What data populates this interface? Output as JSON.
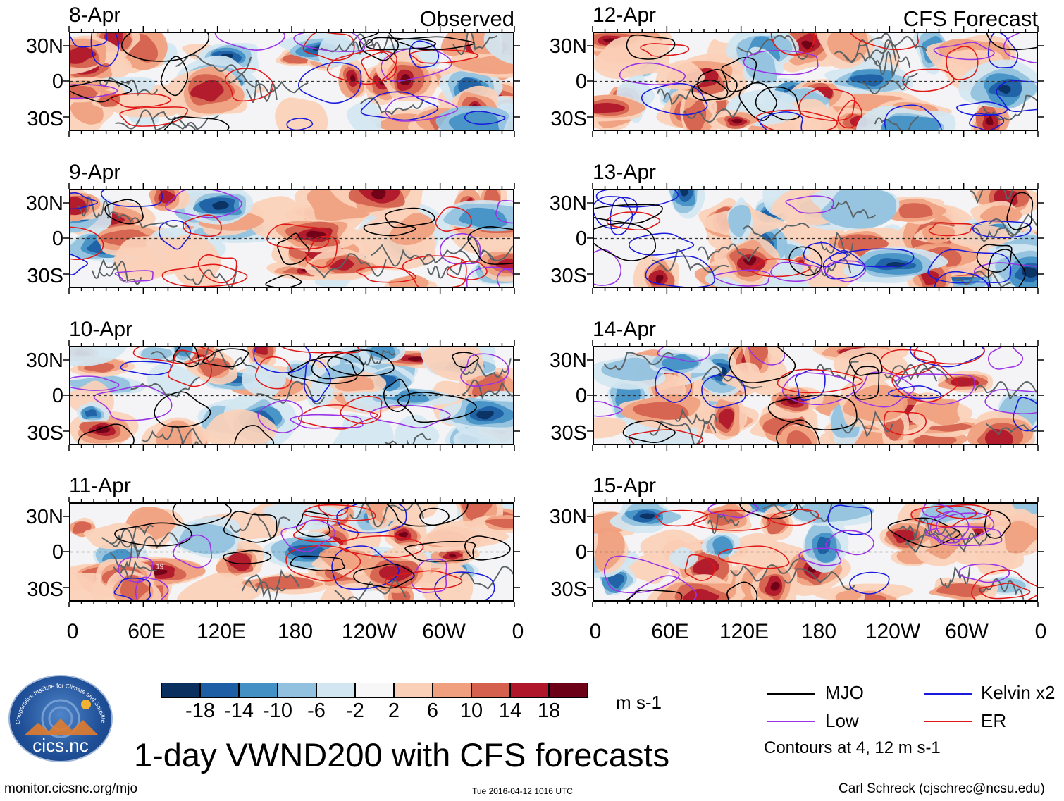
{
  "panels": [
    {
      "date": "8-Apr",
      "col": 0,
      "row": 0,
      "corner": "Observed",
      "seed": 3
    },
    {
      "date": "9-Apr",
      "col": 0,
      "row": 1,
      "corner": "",
      "seed": 11
    },
    {
      "date": "10-Apr",
      "col": 0,
      "row": 2,
      "corner": "",
      "seed": 17
    },
    {
      "date": "11-Apr",
      "col": 0,
      "row": 3,
      "corner": "",
      "seed": 23,
      "annotation": "19"
    },
    {
      "date": "12-Apr",
      "col": 1,
      "row": 0,
      "corner": "CFS Forecast",
      "seed": 31
    },
    {
      "date": "13-Apr",
      "col": 1,
      "row": 1,
      "corner": "",
      "seed": 37
    },
    {
      "date": "14-Apr",
      "col": 1,
      "row": 2,
      "corner": "",
      "seed": 41
    },
    {
      "date": "15-Apr",
      "col": 1,
      "row": 3,
      "corner": "",
      "seed": 47
    }
  ],
  "lat_labels": [
    "30N",
    "0",
    "30S"
  ],
  "lon_labels": [
    "0",
    "60E",
    "120E",
    "180",
    "120W",
    "60W",
    "0"
  ],
  "colorbar": {
    "ticks": [
      "-18",
      "-14",
      "-10",
      "-6",
      "-2",
      "2",
      "6",
      "10",
      "14",
      "18"
    ],
    "colors": [
      "#0a3060",
      "#1d5ea4",
      "#4390c4",
      "#91c1de",
      "#d2e6f1",
      "#f7f7f7",
      "#fbd0b9",
      "#f0a07e",
      "#d4604d",
      "#b0162a",
      "#6c0016"
    ],
    "units": "m s-1"
  },
  "legend": {
    "items": [
      {
        "label": "MJO",
        "color": "#000000"
      },
      {
        "label": "Kelvin x2",
        "color": "#1a1adc"
      },
      {
        "label": "Low",
        "color": "#9a33e6"
      },
      {
        "label": "ER",
        "color": "#e01818"
      }
    ],
    "contours_note": "Contours at 4, 12 m s-1"
  },
  "title": "1-day VWND200 with CFS forecasts",
  "logo_text": "cics.nc",
  "logo_arc_text": "Cooperative Institute for Climate and Satellites",
  "footer": {
    "url": "monitor.cicsnc.org/mjo",
    "timestamp": "Tue 2016-04-12 1016 UTC",
    "author": "Carl Schreck (cjschrec@ncsu.edu)"
  }
}
